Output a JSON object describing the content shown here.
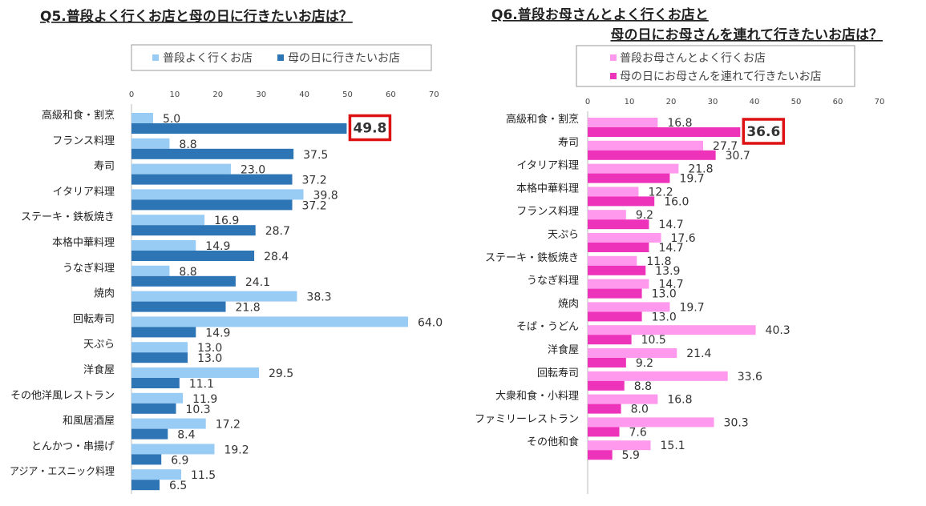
{
  "chart_data": [
    {
      "type": "bar",
      "orientation": "horizontal",
      "title": "Q5.普段よく行くお店と母の日に行きたいお店は？",
      "xlim": [
        0,
        70
      ],
      "x_ticks": [
        "0",
        "10",
        "20",
        "30",
        "40",
        "50",
        "60",
        "70"
      ],
      "legend_placement": "top",
      "highlight": {
        "series": 1,
        "index": 0,
        "color": "#dd1111"
      },
      "categories": [
        "高級和食・割烹",
        "フランス料理",
        "寿司",
        "イタリア料理",
        "ステーキ・鉄板焼き",
        "本格中華料理",
        "うなぎ料理",
        "焼肉",
        "回転寿司",
        "天ぷら",
        "洋食屋",
        "その他洋風レストラン",
        "和風居酒屋",
        "とんかつ・串揚げ",
        "アジア・エスニック料理"
      ],
      "series": [
        {
          "name": "普段よく行くお店",
          "color": "#99ccf5",
          "values": [
            5.0,
            8.8,
            23.0,
            39.8,
            16.9,
            14.9,
            8.8,
            38.3,
            64.0,
            13.0,
            29.5,
            11.9,
            17.2,
            19.2,
            11.5
          ]
        },
        {
          "name": "母の日に行きたいお店",
          "color": "#2e75b6",
          "values": [
            49.8,
            37.5,
            37.2,
            37.2,
            28.7,
            28.4,
            24.1,
            21.8,
            14.9,
            13.0,
            11.1,
            10.3,
            8.4,
            6.9,
            6.5
          ]
        }
      ]
    },
    {
      "type": "bar",
      "orientation": "horizontal",
      "title": "Q6.普段お母さんとよく行くお店と",
      "title_line2": "母の日にお母さんを連れて行きたいお店は？",
      "xlim": [
        0,
        70
      ],
      "x_ticks": [
        "0",
        "10",
        "20",
        "30",
        "40",
        "50",
        "60",
        "70"
      ],
      "legend_placement": "top",
      "highlight": {
        "series": 1,
        "index": 0,
        "color": "#dd1111"
      },
      "categories": [
        "高級和食・割烹",
        "寿司",
        "イタリア料理",
        "本格中華料理",
        "フランス料理",
        "天ぷら",
        "ステーキ・鉄板焼き",
        "うなぎ料理",
        "焼肉",
        "そば・うどん",
        "洋食屋",
        "回転寿司",
        "大衆和食・小料理",
        "ファミリーレストラン",
        "その他和食"
      ],
      "series": [
        {
          "name": "普段お母さんとよく行くお店",
          "color": "#ff99ee",
          "values": [
            16.8,
            27.7,
            21.8,
            12.2,
            9.2,
            17.6,
            11.8,
            14.7,
            19.7,
            40.3,
            21.4,
            33.6,
            16.8,
            30.3,
            15.1
          ]
        },
        {
          "name": "母の日にお母さんを連れて行きたいお店",
          "color": "#ee33bb",
          "values": [
            36.6,
            30.7,
            19.7,
            16.0,
            14.7,
            14.7,
            13.9,
            13.0,
            13.0,
            10.5,
            9.2,
            8.8,
            8.0,
            7.6,
            5.9
          ]
        }
      ]
    }
  ]
}
